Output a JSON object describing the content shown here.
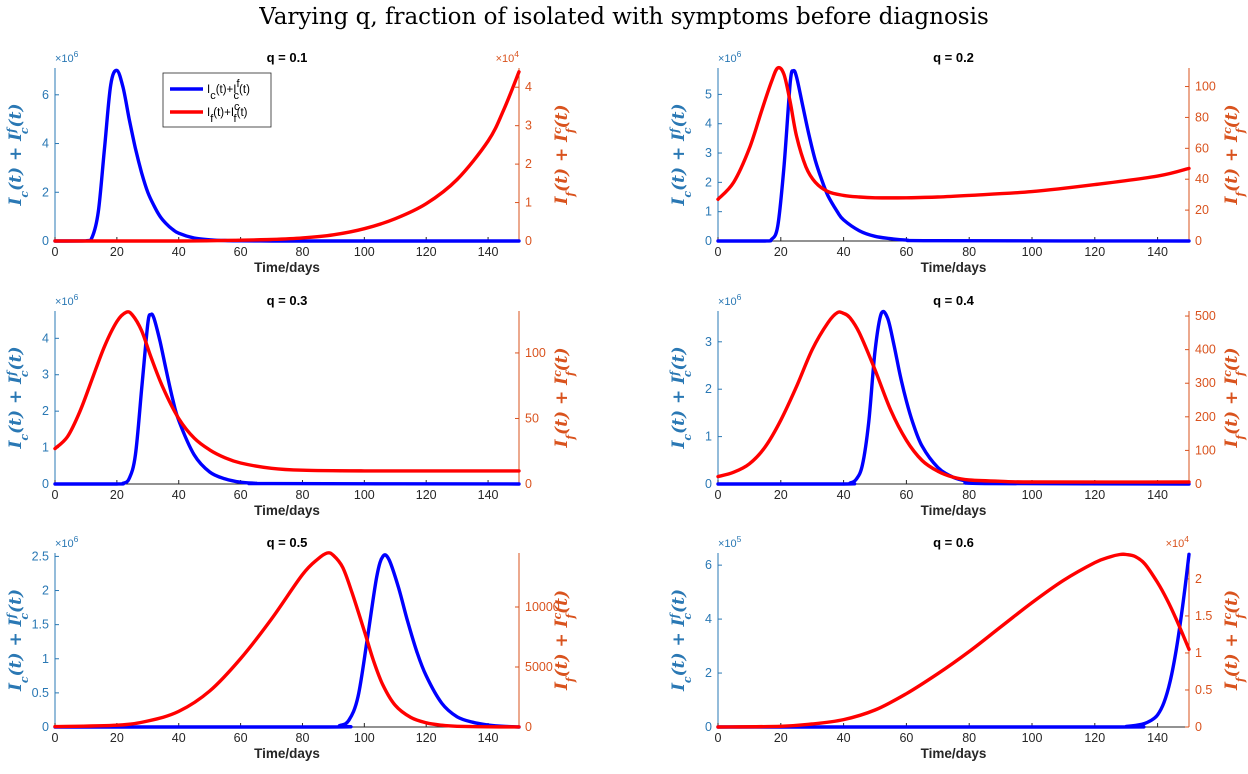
{
  "figure_title": "Varying q, fraction of isolated with symptoms before diagnosis",
  "colors": {
    "blue": "#0000ff",
    "red": "#ff0000",
    "left_axis": "#2a78b4",
    "right_axis": "#d9531e"
  },
  "legend": {
    "entries": [
      "I_c(t)+I_c^f(t)",
      "I_f(t)+I_f^c(t)"
    ]
  },
  "chart_data": [
    {
      "type": "line",
      "title": "q = 0.1",
      "xlabel": "Time/days",
      "ylabel_left": "I_c(t) + I_c^f(t)",
      "ylabel_right": "I_f(t) + I_f^c(t)",
      "xlim": [
        0,
        150
      ],
      "xticks": [
        0,
        20,
        40,
        60,
        80,
        100,
        120,
        140
      ],
      "y_left": {
        "exponent": "×10^6",
        "lim": [
          0,
          7.1
        ],
        "ticks": [
          0,
          2,
          4,
          6
        ]
      },
      "y_right": {
        "exponent": "×10^4",
        "lim": [
          0,
          4.5
        ],
        "ticks": [
          0,
          1,
          2,
          3,
          4
        ]
      },
      "series": [
        {
          "name": "I_c(t)+I_c^f(t)",
          "axis": "left",
          "color": "#0000ff",
          "x": [
            0,
            10,
            12,
            14,
            16,
            18,
            20,
            22,
            24,
            26,
            28,
            30,
            32,
            34,
            36,
            38,
            40,
            45,
            50,
            55,
            60,
            70,
            80,
            100,
            150
          ],
          "y": [
            0,
            0.01,
            0.15,
            1.2,
            3.8,
            6.4,
            7.0,
            6.3,
            5.0,
            3.8,
            2.8,
            2.0,
            1.45,
            1.0,
            0.7,
            0.48,
            0.32,
            0.12,
            0.05,
            0.02,
            0.01,
            0,
            0,
            0,
            0
          ]
        },
        {
          "name": "I_f(t)+I_f^c(t)",
          "axis": "right",
          "color": "#ff0000",
          "x": [
            0,
            40,
            60,
            70,
            80,
            90,
            100,
            110,
            120,
            130,
            140,
            145,
            150
          ],
          "y": [
            0,
            0,
            0.02,
            0.04,
            0.08,
            0.16,
            0.32,
            0.58,
            0.97,
            1.6,
            2.6,
            3.4,
            4.4
          ]
        }
      ],
      "legend_visible": true
    },
    {
      "type": "line",
      "title": "q = 0.2",
      "xlabel": "Time/days",
      "ylabel_left": "I_c(t) + I_c^f(t)",
      "ylabel_right": "I_f(t) + I_f^c(t)",
      "xlim": [
        0,
        150
      ],
      "xticks": [
        0,
        20,
        40,
        60,
        80,
        100,
        120,
        140
      ],
      "y_left": {
        "exponent": "×10^6",
        "lim": [
          0,
          5.9
        ],
        "ticks": [
          0,
          1,
          2,
          3,
          4,
          5
        ]
      },
      "y_right": {
        "exponent": "",
        "lim": [
          0,
          112
        ],
        "ticks": [
          0,
          20,
          40,
          60,
          80,
          100
        ]
      },
      "series": [
        {
          "name": "I_c(t)+I_c^f(t)",
          "axis": "left",
          "color": "#0000ff",
          "x": [
            0,
            15,
            17,
            19,
            21,
            23,
            24,
            25,
            27,
            29,
            31,
            33,
            35,
            38,
            40,
            45,
            50,
            55,
            60,
            70,
            150
          ],
          "y": [
            0,
            0,
            0.05,
            0.5,
            2.5,
            5.4,
            5.8,
            5.6,
            4.6,
            3.6,
            2.75,
            2.1,
            1.55,
            1.0,
            0.72,
            0.35,
            0.16,
            0.08,
            0.03,
            0.01,
            0
          ]
        },
        {
          "name": "I_f(t)+I_f^c(t)",
          "axis": "right",
          "color": "#ff0000",
          "x": [
            0,
            5,
            10,
            14,
            17,
            19,
            21,
            23,
            25,
            28,
            31,
            35,
            40,
            45,
            50,
            60,
            70,
            80,
            100,
            120,
            140,
            150
          ],
          "y": [
            27,
            38,
            60,
            85,
            103,
            112,
            108,
            90,
            68,
            48,
            38,
            32,
            29.5,
            28.5,
            28,
            28,
            28.5,
            29.5,
            32,
            36.5,
            42,
            47
          ]
        }
      ],
      "legend_visible": false
    },
    {
      "type": "line",
      "title": "q = 0.3",
      "xlabel": "Time/days",
      "ylabel_left": "I_c(t) + I_c^f(t)",
      "ylabel_right": "I_f(t) + I_f^c(t)",
      "xlim": [
        0,
        150
      ],
      "xticks": [
        0,
        20,
        40,
        60,
        80,
        100,
        120,
        140
      ],
      "y_left": {
        "exponent": "×10^6",
        "lim": [
          0,
          4.75
        ],
        "ticks": [
          0,
          1,
          2,
          3,
          4
        ]
      },
      "y_right": {
        "exponent": "",
        "lim": [
          0,
          132
        ],
        "ticks": [
          0,
          50,
          100
        ]
      },
      "series": [
        {
          "name": "I_c(t)+I_c^f(t)",
          "axis": "left",
          "color": "#0000ff",
          "x": [
            0,
            20,
            22,
            24,
            26,
            28,
            30,
            31,
            32,
            34,
            36,
            38,
            40,
            45,
            50,
            55,
            60,
            65,
            70,
            150
          ],
          "y": [
            0,
            0,
            0.02,
            0.15,
            0.8,
            2.6,
            4.4,
            4.65,
            4.55,
            3.9,
            3.1,
            2.35,
            1.75,
            0.8,
            0.33,
            0.14,
            0.05,
            0.02,
            0.01,
            0
          ]
        },
        {
          "name": "I_f(t)+I_f^c(t)",
          "axis": "right",
          "color": "#ff0000",
          "x": [
            0,
            4,
            8,
            12,
            16,
            20,
            23,
            25,
            28,
            31,
            35,
            40,
            45,
            50,
            55,
            60,
            70,
            80,
            100,
            120,
            150
          ],
          "y": [
            27,
            36,
            55,
            80,
            105,
            124,
            131,
            129,
            117,
            97,
            73,
            50,
            35,
            26,
            20,
            16,
            12,
            10.5,
            10,
            10,
            10
          ]
        }
      ],
      "legend_visible": false
    },
    {
      "type": "line",
      "title": "q = 0.4",
      "xlabel": "Time/days",
      "ylabel_left": "I_c(t) + I_c^f(t)",
      "ylabel_right": "I_f(t) + I_f^c(t)",
      "xlim": [
        0,
        150
      ],
      "xticks": [
        0,
        20,
        40,
        60,
        80,
        100,
        120,
        140
      ],
      "y_left": {
        "exponent": "×10^6",
        "lim": [
          0,
          3.65
        ],
        "ticks": [
          0,
          1,
          2,
          3
        ]
      },
      "y_right": {
        "exponent": "",
        "lim": [
          0,
          515
        ],
        "ticks": [
          0,
          100,
          200,
          300,
          400,
          500
        ]
      },
      "series": [
        {
          "name": "I_c(t)+I_c^f(t)",
          "axis": "left",
          "color": "#0000ff",
          "x": [
            0,
            40,
            42,
            44,
            46,
            48,
            50,
            52,
            54,
            56,
            58,
            60,
            62,
            65,
            70,
            75,
            80,
            85,
            150
          ],
          "y": [
            0,
            0,
            0.02,
            0.1,
            0.4,
            1.3,
            2.8,
            3.6,
            3.5,
            2.95,
            2.3,
            1.75,
            1.3,
            0.8,
            0.35,
            0.14,
            0.05,
            0.01,
            0
          ]
        },
        {
          "name": "I_f(t)+I_f^c(t)",
          "axis": "right",
          "color": "#ff0000",
          "x": [
            0,
            5,
            10,
            15,
            20,
            25,
            30,
            35,
            38,
            40,
            42,
            45,
            50,
            55,
            60,
            65,
            70,
            75,
            80,
            90,
            100,
            150
          ],
          "y": [
            22,
            35,
            60,
            110,
            190,
            290,
            400,
            480,
            510,
            508,
            495,
            450,
            340,
            220,
            130,
            70,
            38,
            20,
            12,
            8,
            6,
            6
          ]
        }
      ],
      "legend_visible": false
    },
    {
      "type": "line",
      "title": "q = 0.5",
      "xlabel": "Time/days",
      "ylabel_left": "I_c(t) + I_c^f(t)",
      "ylabel_right": "I_f(t) + I_f^c(t)",
      "xlim": [
        0,
        150
      ],
      "xticks": [
        0,
        20,
        40,
        60,
        80,
        100,
        120,
        140
      ],
      "y_left": {
        "exponent": "×10^6",
        "lim": [
          0,
          2.55
        ],
        "ticks": [
          0,
          0.5,
          1,
          1.5,
          2,
          2.5
        ]
      },
      "y_right": {
        "exponent": "",
        "lim": [
          0,
          14500
        ],
        "ticks": [
          0,
          5000,
          10000
        ]
      },
      "series": [
        {
          "name": "I_c(t)+I_c^f(t)",
          "axis": "left",
          "color": "#0000ff",
          "x": [
            0,
            88,
            92,
            95,
            98,
            101,
            104,
            106,
            108,
            111,
            114,
            117,
            120,
            125,
            130,
            135,
            140,
            145,
            150
          ],
          "y": [
            0,
            0,
            0.02,
            0.1,
            0.45,
            1.3,
            2.2,
            2.5,
            2.45,
            2.05,
            1.55,
            1.1,
            0.75,
            0.35,
            0.15,
            0.07,
            0.03,
            0.01,
            0
          ]
        },
        {
          "name": "I_f(t)+I_f^c(t)",
          "axis": "right",
          "color": "#ff0000",
          "x": [
            0,
            20,
            30,
            40,
            50,
            60,
            70,
            80,
            85,
            88,
            90,
            93,
            96,
            100,
            103,
            106,
            110,
            115,
            120,
            125,
            130,
            140,
            150
          ],
          "y": [
            30,
            150,
            500,
            1300,
            3000,
            5700,
            9000,
            12700,
            14000,
            14500,
            14300,
            13300,
            11200,
            8000,
            5500,
            3500,
            1800,
            800,
            350,
            150,
            60,
            20,
            10
          ]
        }
      ],
      "legend_visible": false
    },
    {
      "type": "line",
      "title": "q = 0.6",
      "xlabel": "Time/days",
      "ylabel_left": "I_c(t) + I_c^f(t)",
      "ylabel_right": "I_f(t) + I_f^c(t)",
      "xlim": [
        0,
        150
      ],
      "xticks": [
        0,
        20,
        40,
        60,
        80,
        100,
        120,
        140
      ],
      "y_left": {
        "exponent": "×10^5",
        "lim": [
          0,
          6.45
        ],
        "ticks": [
          0,
          2,
          4,
          6
        ]
      },
      "y_right": {
        "exponent": "×10^4",
        "lim": [
          0,
          2.35
        ],
        "ticks": [
          0,
          0.5,
          1,
          1.5,
          2
        ]
      },
      "series": [
        {
          "name": "I_c(t)+I_c^f(t)",
          "axis": "left",
          "color": "#0000ff",
          "x": [
            0,
            125,
            130,
            135,
            138,
            140,
            142,
            144,
            146,
            148,
            150
          ],
          "y": [
            0,
            0,
            0.02,
            0.1,
            0.25,
            0.45,
            0.9,
            1.7,
            2.9,
            4.5,
            6.4
          ]
        },
        {
          "name": "I_f(t)+I_f^c(t)",
          "axis": "right",
          "color": "#ff0000",
          "x": [
            0,
            20,
            30,
            40,
            50,
            60,
            70,
            80,
            90,
            100,
            110,
            120,
            125,
            128,
            130,
            133,
            136,
            140,
            143,
            146,
            150
          ],
          "y": [
            0,
            0.01,
            0.04,
            0.1,
            0.23,
            0.45,
            0.72,
            1.02,
            1.35,
            1.68,
            1.98,
            2.22,
            2.3,
            2.33,
            2.33,
            2.3,
            2.2,
            1.95,
            1.72,
            1.45,
            1.05
          ]
        }
      ],
      "legend_visible": false
    }
  ]
}
